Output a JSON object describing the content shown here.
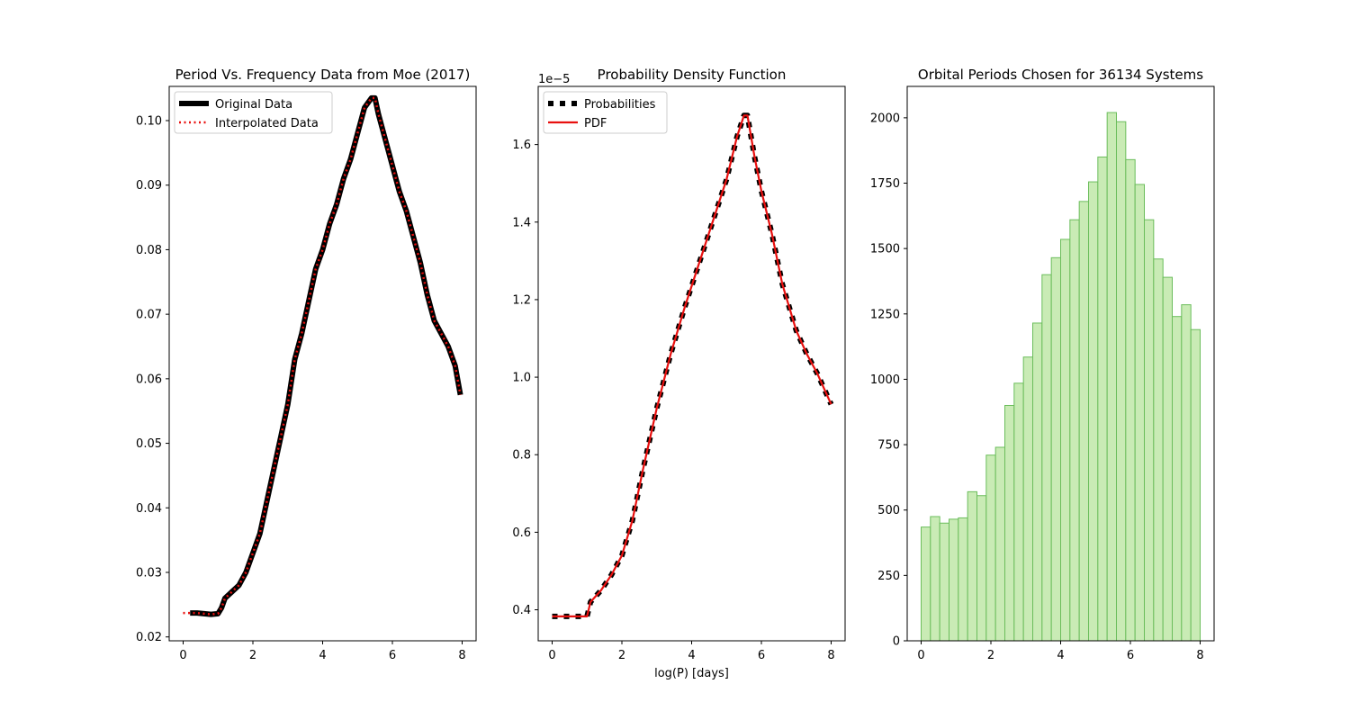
{
  "chart_data": [
    {
      "type": "line",
      "title": "Period Vs. Frequency Data from Moe (2017)",
      "xlabel": "",
      "ylabel": "",
      "xlim": [
        -0.4,
        8.4
      ],
      "ylim": [
        0.0194,
        0.1053
      ],
      "xticks": [
        0,
        2,
        4,
        6,
        8
      ],
      "xtick_labels": [
        "0",
        "2",
        "4",
        "6",
        "8"
      ],
      "yticks": [
        0.02,
        0.03,
        0.04,
        0.05,
        0.06,
        0.07,
        0.08,
        0.09,
        0.1
      ],
      "ytick_labels": [
        "0.02",
        "0.03",
        "0.04",
        "0.05",
        "0.06",
        "0.07",
        "0.08",
        "0.09",
        "0.10"
      ],
      "grid": false,
      "legend": "top-left",
      "series": [
        {
          "name": "Original Data",
          "color": "#000000",
          "style": "solid-thick",
          "x": [
            0.2,
            0.4,
            0.6,
            0.8,
            1.0,
            1.1,
            1.2,
            1.4,
            1.6,
            1.8,
            2.0,
            2.2,
            2.4,
            2.6,
            2.8,
            3.0,
            3.2,
            3.4,
            3.6,
            3.8,
            4.0,
            4.2,
            4.4,
            4.6,
            4.8,
            5.0,
            5.2,
            5.4,
            5.5,
            5.6,
            5.8,
            6.0,
            6.2,
            6.4,
            6.6,
            6.8,
            7.0,
            7.2,
            7.4,
            7.6,
            7.8,
            7.95
          ],
          "y": [
            0.0237,
            0.0237,
            0.0236,
            0.0235,
            0.0236,
            0.0245,
            0.026,
            0.027,
            0.028,
            0.03,
            0.033,
            0.036,
            0.041,
            0.046,
            0.051,
            0.056,
            0.063,
            0.067,
            0.072,
            0.077,
            0.08,
            0.084,
            0.087,
            0.091,
            0.094,
            0.098,
            0.102,
            0.1035,
            0.1035,
            0.101,
            0.097,
            0.093,
            0.089,
            0.086,
            0.082,
            0.078,
            0.073,
            0.069,
            0.067,
            0.065,
            0.062,
            0.0575
          ]
        },
        {
          "name": "Interpolated Data",
          "color": "#e8100f",
          "style": "dotted",
          "x": [
            0.0,
            0.2,
            0.4,
            0.6,
            0.8,
            1.0,
            1.1,
            1.2,
            1.4,
            1.6,
            1.8,
            2.0,
            2.2,
            2.4,
            2.6,
            2.8,
            3.0,
            3.2,
            3.4,
            3.6,
            3.8,
            4.0,
            4.2,
            4.4,
            4.6,
            4.8,
            5.0,
            5.2,
            5.4,
            5.5,
            5.6,
            5.8,
            6.0,
            6.2,
            6.4,
            6.6,
            6.8,
            7.0,
            7.2,
            7.4,
            7.6,
            7.8,
            7.95
          ],
          "y": [
            0.0237,
            0.0237,
            0.0237,
            0.0236,
            0.0235,
            0.0236,
            0.0245,
            0.026,
            0.027,
            0.028,
            0.03,
            0.033,
            0.036,
            0.041,
            0.046,
            0.051,
            0.056,
            0.063,
            0.067,
            0.072,
            0.077,
            0.08,
            0.084,
            0.087,
            0.091,
            0.094,
            0.098,
            0.102,
            0.1035,
            0.1035,
            0.101,
            0.097,
            0.093,
            0.089,
            0.086,
            0.082,
            0.078,
            0.073,
            0.069,
            0.067,
            0.065,
            0.062,
            0.0575
          ]
        }
      ]
    },
    {
      "type": "line",
      "title": "Probability Density Function",
      "xlabel": "log(P) [days]",
      "ylabel": "",
      "offset_text": "1e−5",
      "xlim": [
        -0.4,
        8.4
      ],
      "ylim": [
        0.32,
        1.75
      ],
      "xticks": [
        0,
        2,
        4,
        6,
        8
      ],
      "xtick_labels": [
        "0",
        "2",
        "4",
        "6",
        "8"
      ],
      "yticks": [
        0.4,
        0.6,
        0.8,
        1.0,
        1.2,
        1.4,
        1.6
      ],
      "ytick_labels": [
        "0.4",
        "0.6",
        "0.8",
        "1.0",
        "1.2",
        "1.4",
        "1.6"
      ],
      "grid": false,
      "legend": "top-left",
      "series": [
        {
          "name": "Probabilities",
          "color": "#000000",
          "style": "dashed-thick",
          "x": [
            0.0,
            0.5,
            1.0,
            1.1,
            1.4,
            1.7,
            2.0,
            2.3,
            2.6,
            3.0,
            3.4,
            3.8,
            4.2,
            4.6,
            5.0,
            5.3,
            5.5,
            5.6,
            5.8,
            6.0,
            6.3,
            6.6,
            7.0,
            7.3,
            7.6,
            8.0
          ],
          "y": [
            0.383,
            0.383,
            0.383,
            0.42,
            0.45,
            0.49,
            0.54,
            0.63,
            0.76,
            0.92,
            1.06,
            1.18,
            1.29,
            1.4,
            1.51,
            1.62,
            1.675,
            1.675,
            1.57,
            1.48,
            1.37,
            1.24,
            1.12,
            1.06,
            1.01,
            0.93
          ]
        },
        {
          "name": "PDF",
          "color": "#e8100f",
          "style": "solid",
          "x": [
            0.0,
            0.5,
            1.0,
            1.1,
            1.4,
            1.7,
            2.0,
            2.3,
            2.6,
            3.0,
            3.4,
            3.8,
            4.2,
            4.6,
            5.0,
            5.3,
            5.5,
            5.6,
            5.8,
            6.0,
            6.3,
            6.6,
            7.0,
            7.3,
            7.6,
            8.0
          ],
          "y": [
            0.383,
            0.383,
            0.383,
            0.42,
            0.45,
            0.49,
            0.54,
            0.63,
            0.76,
            0.92,
            1.06,
            1.18,
            1.29,
            1.4,
            1.51,
            1.62,
            1.675,
            1.675,
            1.57,
            1.48,
            1.37,
            1.24,
            1.12,
            1.06,
            1.01,
            0.93
          ]
        }
      ]
    },
    {
      "type": "bar",
      "subtype": "histogram",
      "title": "Orbital Periods Chosen for 36134 Systems",
      "xlabel": "",
      "ylabel": "",
      "xlim": [
        -0.4,
        8.4
      ],
      "ylim": [
        0,
        2120
      ],
      "xticks": [
        0,
        2,
        4,
        6,
        8
      ],
      "xtick_labels": [
        "0",
        "2",
        "4",
        "6",
        "8"
      ],
      "yticks": [
        0,
        250,
        500,
        750,
        1000,
        1250,
        1500,
        1750,
        2000
      ],
      "ytick_labels": [
        "0",
        "250",
        "500",
        "750",
        "1000",
        "1250",
        "1500",
        "1750",
        "2000"
      ],
      "grid": false,
      "bar_fill": "#c9ebb5",
      "bar_edge": "#6bbd5b",
      "bin_edges": [
        0.0,
        0.2667,
        0.5333,
        0.8,
        1.0667,
        1.3333,
        1.6,
        1.8667,
        2.1333,
        2.4,
        2.6667,
        2.9333,
        3.2,
        3.4667,
        3.7333,
        4.0,
        4.2667,
        4.5333,
        4.8,
        5.0667,
        5.3333,
        5.6,
        5.8667,
        6.1333,
        6.4,
        6.6667,
        6.9333,
        7.2,
        7.4667,
        7.7333,
        8.0
      ],
      "values": [
        435,
        475,
        450,
        465,
        470,
        570,
        555,
        710,
        740,
        900,
        985,
        1085,
        1215,
        1400,
        1465,
        1535,
        1610,
        1680,
        1755,
        1850,
        2020,
        1985,
        1840,
        1745,
        1610,
        1460,
        1390,
        1240,
        1285,
        1190
      ]
    }
  ]
}
